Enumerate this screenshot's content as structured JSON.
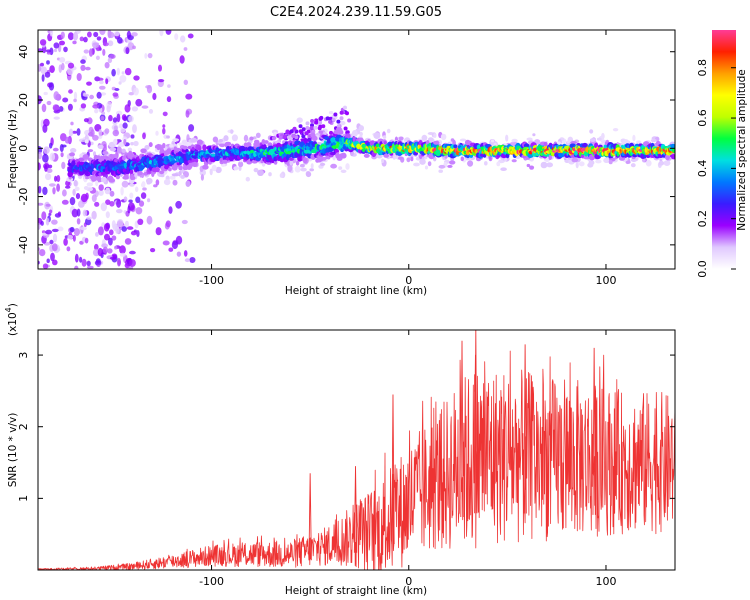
{
  "title": "C2E4.2024.239.11.59.G05",
  "chart_data": [
    {
      "type": "heatmap",
      "title": "C2E4.2024.239.11.59.G05",
      "xlabel": "Height of straight line (km)",
      "ylabel": "Frequency (Hz)",
      "xlim": [
        -188,
        135
      ],
      "ylim": [
        -50,
        49
      ],
      "xticks": [
        -100,
        0,
        100
      ],
      "xtick_labels": [
        "-100",
        "0",
        "100"
      ],
      "yticks": [
        -40,
        -20,
        0,
        20,
        40
      ],
      "ytick_labels": [
        "-40",
        "-20",
        "0",
        "20",
        "40"
      ],
      "grid": false,
      "colorbar": {
        "label": "Normalized spectral amplitude",
        "range": [
          0,
          0.95
        ],
        "ticks": [
          0.0,
          0.2,
          0.4,
          0.6,
          0.8
        ],
        "tick_labels": [
          "0.0",
          "0.2",
          "0.4",
          "0.6",
          "0.8"
        ],
        "colormap": [
          "#ffffff",
          "#e0c8ff",
          "#9a00ff",
          "#3a1cff",
          "#0078ff",
          "#00e0e0",
          "#00ff40",
          "#c0ff00",
          "#ffff00",
          "#ffa000",
          "#ff2000",
          "#ff3c96"
        ]
      },
      "ridge": {
        "x": [
          -170,
          -150,
          -130,
          -110,
          -90,
          -70,
          -50,
          -35,
          -30,
          -20,
          0,
          25,
          50,
          75,
          100,
          120,
          135
        ],
        "center_hz": [
          -8,
          -8,
          -6,
          -3,
          -2,
          -2,
          0,
          2,
          2,
          0,
          0,
          -1,
          -1,
          -1,
          -1,
          -1,
          -1
        ],
        "halfwidth_hz": [
          5,
          6,
          5,
          5,
          4,
          5,
          6,
          6,
          4,
          3,
          3,
          3,
          3,
          3,
          3,
          3,
          3
        ],
        "peak_amplitude": [
          0.35,
          0.35,
          0.4,
          0.4,
          0.45,
          0.5,
          0.5,
          0.55,
          0.6,
          0.75,
          0.85,
          0.9,
          0.9,
          0.95,
          0.95,
          0.9,
          0.9
        ]
      }
    },
    {
      "type": "line",
      "xlabel": "Height of straight line (km)",
      "ylabel": "SNR (10 * v/v)",
      "y_scale_label": "(x10",
      "y_scale_exp": "4",
      "y_scale_close": ")",
      "xlim": [
        -188,
        135
      ],
      "ylim": [
        0,
        3.35
      ],
      "xticks": [
        -100,
        0,
        100
      ],
      "xtick_labels": [
        "-100",
        "0",
        "100"
      ],
      "yticks": [
        1,
        2,
        3
      ],
      "ytick_labels": [
        "1",
        "2",
        "3"
      ],
      "grid": false,
      "series": [
        {
          "name": "SNR",
          "color": "#ee3333",
          "envelope_x": [
            -188,
            -160,
            -140,
            -120,
            -100,
            -80,
            -60,
            -45,
            -35,
            -25,
            -15,
            -5,
            5,
            15,
            25,
            35,
            50,
            70,
            90,
            110,
            125,
            135
          ],
          "envelope_mean": [
            0.01,
            0.02,
            0.05,
            0.12,
            0.2,
            0.22,
            0.22,
            0.3,
            0.4,
            0.5,
            0.55,
            0.8,
            1.05,
            1.25,
            1.45,
            1.6,
            1.6,
            1.55,
            1.55,
            1.5,
            1.5,
            1.5
          ],
          "envelope_amp": [
            0.01,
            0.02,
            0.05,
            0.1,
            0.15,
            0.18,
            0.2,
            0.25,
            0.35,
            0.5,
            0.7,
            0.8,
            0.9,
            1.0,
            1.2,
            1.3,
            1.25,
            1.15,
            1.1,
            1.0,
            1.0,
            0.95
          ],
          "peaks": [
            {
              "x": 34,
              "y": 3.35
            },
            {
              "x": 59,
              "y": 3.15
            },
            {
              "x": 27,
              "y": 3.2
            },
            {
              "x": 94,
              "y": 3.1
            },
            {
              "x": -8,
              "y": 2.45
            },
            {
              "x": -50,
              "y": 1.35
            },
            {
              "x": -27,
              "y": 1.45
            }
          ]
        }
      ]
    }
  ]
}
